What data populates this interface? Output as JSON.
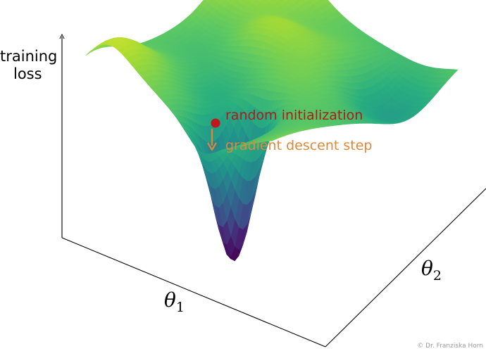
{
  "axes": {
    "z_label_line1": "training",
    "z_label_line2": "loss",
    "x_symbol": "θ",
    "x_subscript": "1",
    "y_symbol": "θ",
    "y_subscript": "2"
  },
  "annotations": {
    "init_label": "random initialization",
    "step_label": "gradient descent step"
  },
  "credit": "© Dr. Franziska Horn",
  "colors": {
    "init_point": "#c0161c",
    "step_arrow": "#e0883a",
    "surface_colormap": "viridis",
    "axis": "#000000"
  }
}
